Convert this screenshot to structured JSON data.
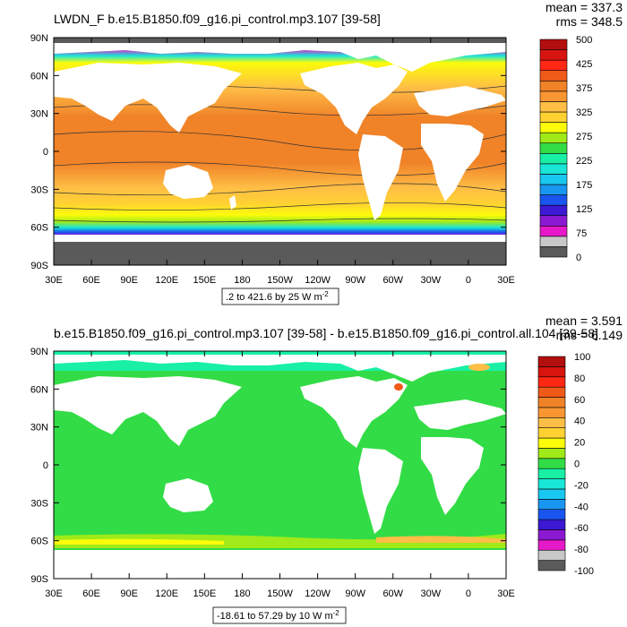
{
  "panels": [
    {
      "id": "top",
      "title": "LWDN_F b.e15.B1850.f09_g16.pi_control.mp3.107 [39-58]",
      "stats": {
        "mean": "mean = 337.3",
        "rms": "rms = 348.5"
      },
      "range_note": ".2 to 421.6 by 25  W m",
      "range_exp": "-2",
      "lat_labels": [
        "90N",
        "60N",
        "30N",
        "0",
        "30S",
        "60S",
        "90S"
      ],
      "lon_labels": [
        "30E",
        "60E",
        "90E",
        "120E",
        "150E",
        "180",
        "150W",
        "120W",
        "90W",
        "60W",
        "30W",
        "0",
        "30E"
      ],
      "colorbar": {
        "colors": [
          "#5a5a5a",
          "#c8c8c8",
          "#e619c8",
          "#8c19d2",
          "#3c19d2",
          "#1955f0",
          "#1996f0",
          "#19c8f0",
          "#19e6d7",
          "#19f0a5",
          "#32dc46",
          "#a0ea19",
          "#fbfb0a",
          "#ffd232",
          "#ffbe46",
          "#fa9632",
          "#f08228",
          "#f05a19",
          "#ff2814",
          "#d7140f",
          "#b40f0f"
        ],
        "labels": [
          "0",
          "75",
          "125",
          "175",
          "225",
          "275",
          "325",
          "375",
          "425",
          "500"
        ]
      }
    },
    {
      "id": "bottom",
      "title": "b.e15.B1850.f09_g16.pi_control.mp3.107 [39-58] - b.e15.B1850.f09_g16.pi_control.all.104 [39-58]",
      "stats": {
        "mean": "mean = 3.591",
        "rms": "rms = 6.149"
      },
      "range_note": "-18.61 to 57.29 by 10  W m",
      "range_exp": "-2",
      "lat_labels": [
        "90N",
        "60N",
        "30N",
        "0",
        "30S",
        "60S",
        "90S"
      ],
      "lon_labels": [
        "30E",
        "60E",
        "90E",
        "120E",
        "150E",
        "180",
        "150W",
        "120W",
        "90W",
        "60W",
        "30W",
        "0",
        "30E"
      ],
      "colorbar": {
        "colors": [
          "#5a5a5a",
          "#c8c8c8",
          "#e619c8",
          "#8c19d2",
          "#3c19d2",
          "#1955f0",
          "#1996f0",
          "#19c8f0",
          "#19e6d7",
          "#19f0a5",
          "#32dc46",
          "#a0ea19",
          "#fbfb0a",
          "#ffd232",
          "#ffbe46",
          "#fa9632",
          "#f08228",
          "#f05a19",
          "#ff2814",
          "#d7140f",
          "#b40f0f"
        ],
        "labels": [
          "-100",
          "-80",
          "-60",
          "-40",
          "-20",
          "0",
          "20",
          "40",
          "60",
          "80",
          "100"
        ]
      }
    }
  ]
}
